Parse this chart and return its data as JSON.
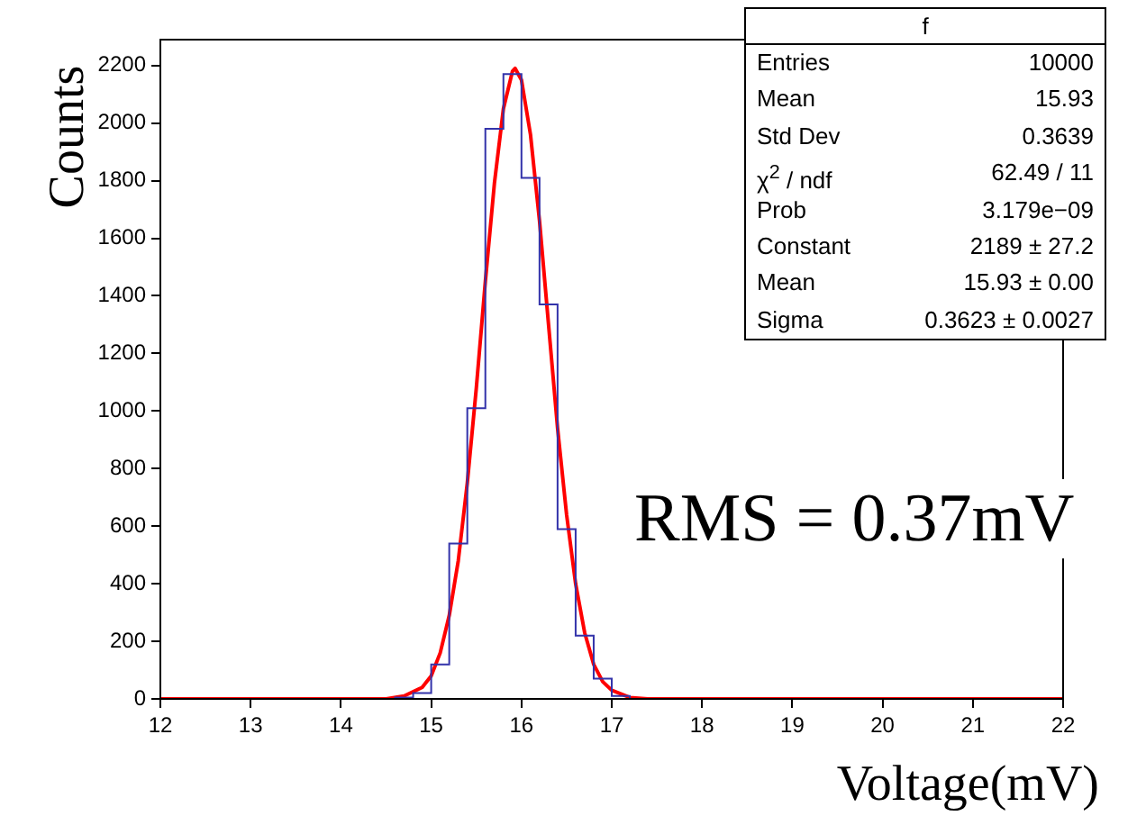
{
  "chart_data": {
    "type": "histogram",
    "xlabel": "Voltage(mV)",
    "ylabel": "Counts",
    "bins": [
      12,
      12.2,
      12.4,
      12.6,
      12.8,
      13,
      13.2,
      13.4,
      13.6,
      13.8,
      14,
      14.2,
      14.4,
      14.6,
      14.8,
      15,
      15.2,
      15.4,
      15.6,
      15.8,
      16,
      16.2,
      16.4,
      16.6,
      16.8,
      17,
      17.2,
      17.4,
      17.6,
      17.8,
      18,
      18.2,
      18.4,
      18.6,
      18.8,
      19,
      19.2,
      19.4,
      19.6,
      19.8,
      20,
      20.2,
      20.4,
      20.6,
      20.8,
      21,
      21.2,
      21.4,
      21.6,
      21.8,
      22
    ],
    "series": [
      {
        "color": "#3333aa",
        "values": [
          0,
          0,
          0,
          0,
          0,
          0,
          0,
          0,
          0,
          0,
          0,
          0,
          0,
          5,
          20,
          120,
          540,
          1010,
          1980,
          2170,
          1810,
          1370,
          590,
          220,
          70,
          10,
          0,
          0,
          0,
          0,
          0,
          0,
          0,
          0,
          0,
          0,
          0,
          0,
          0,
          0,
          0,
          0,
          0,
          0,
          0,
          0,
          0,
          0,
          0,
          0
        ]
      },
      {
        "type": "line",
        "color": "#ff0000",
        "x": [
          12,
          14.4,
          14.5,
          14.7,
          14.9,
          15,
          15.1,
          15.2,
          15.3,
          15.4,
          15.5,
          15.6,
          15.7,
          15.8,
          15.9,
          15.93,
          16,
          16.1,
          16.2,
          16.3,
          16.4,
          16.5,
          16.6,
          16.7,
          16.8,
          16.9,
          17,
          17.2,
          17.4,
          17.6,
          22
        ],
        "values": [
          0,
          0,
          0,
          10,
          40,
          80,
          160,
          290,
          480,
          750,
          1080,
          1450,
          1790,
          2050,
          2180,
          2190,
          2150,
          1960,
          1660,
          1300,
          940,
          640,
          400,
          230,
          120,
          60,
          30,
          5,
          0,
          0,
          0
        ]
      }
    ],
    "xlim": [
      12,
      22
    ],
    "xticks": [
      12,
      13,
      14,
      15,
      16,
      17,
      18,
      19,
      20,
      21,
      22
    ],
    "ylim": [
      0,
      2290
    ],
    "yticks": [
      0,
      200,
      400,
      600,
      800,
      1000,
      1200,
      1400,
      1600,
      1800,
      2000,
      2200
    ],
    "grid": false,
    "legend": false,
    "annotations": [
      "RMS = 0.37mV",
      "f",
      "Entries",
      "10000",
      "Mean",
      "15.93",
      "Std Dev",
      "0.3639",
      "χ$^{2}$ / ndf",
      "62.49 / 11",
      "Prob",
      "3.179e−09",
      "Constant",
      "2189 ± 27.2",
      "Mean",
      "15.93 ± 0.00",
      "Sigma",
      "0.3623 ± 0.0027"
    ]
  }
}
